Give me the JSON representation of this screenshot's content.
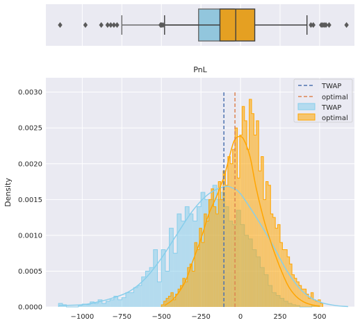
{
  "chart_data": [
    {
      "type": "boxplot",
      "orientation": "horizontal",
      "series": [
        {
          "name": "TWAP",
          "color": "#92c6dd",
          "q1": -265,
          "median": -100,
          "q3": -40,
          "whisker_low": -750,
          "whisker_high": 60,
          "outliers": [
            -1140,
            -980,
            -880,
            -840,
            -820,
            -800,
            -780
          ]
        },
        {
          "name": "optimal",
          "color": "#e5a022",
          "q1": -130,
          "median": -30,
          "q3": 90,
          "whisker_low": -480,
          "whisker_high": 420,
          "outliers": [
            -490,
            -500,
            -505,
            445,
            460,
            510,
            520,
            530,
            540,
            560,
            670
          ]
        }
      ],
      "xlim": [
        -1230,
        720
      ]
    },
    {
      "type": "histogram",
      "title": "PnL",
      "xlabel": "",
      "ylabel": "Density",
      "xlim": [
        -1230,
        720
      ],
      "ylim": [
        0,
        0.0032
      ],
      "x_ticks": [
        -1000,
        -750,
        -500,
        -250,
        0,
        250,
        500
      ],
      "x_tick_labels": [
        "−1000",
        "−750",
        "−500",
        "−250",
        "0",
        "250",
        "500"
      ],
      "y_ticks": [
        0,
        0.0005,
        0.001,
        0.0015,
        0.002,
        0.0025,
        0.003
      ],
      "y_tick_labels": [
        "0.0000",
        "0.0005",
        "0.0010",
        "0.0015",
        "0.0020",
        "0.0025",
        "0.0030"
      ],
      "grid": true,
      "legend_position": "top-right",
      "series": [
        {
          "name": "TWAP",
          "color": "#87ceeb",
          "bin_start": -1150,
          "bin_width": 25,
          "values": [
            5e-05,
            3e-05,
            0,
            0,
            0,
            2e-05,
            4e-05,
            3e-05,
            7e-05,
            5e-05,
            0.0001,
            5e-05,
            8e-05,
            0.0001,
            0.00015,
            0.0001,
            0.00013,
            0.0002,
            0.0002,
            0.00027,
            0.0003,
            0.00042,
            0.0005,
            0.00055,
            0.0008,
            0.00035,
            0.0008,
            0.0005,
            0.0011,
            0.00075,
            0.0013,
            0.0012,
            0.0014,
            0.0013,
            0.0012,
            0.0014,
            0.0016,
            0.0015,
            0.0015,
            0.0017,
            0.0015,
            0.0016,
            0.0014,
            0.0012,
            0.00115,
            0.00135,
            0.00115,
            0.001,
            0.00095,
            0.0008,
            0.0007,
            0.00055,
            0.00045,
            0.0003,
            0.0002,
            0.00016,
            0.00012,
            8e-05,
            5e-05,
            3e-05,
            2e-05,
            0,
            0,
            0,
            2e-05,
            2e-05
          ],
          "kde": [
            [
              -1150,
              2e-05
            ],
            [
              -1000,
              3e-05
            ],
            [
              -900,
              7e-05
            ],
            [
              -800,
              0.00013
            ],
            [
              -700,
              0.00022
            ],
            [
              -600,
              0.0004
            ],
            [
              -500,
              0.00068
            ],
            [
              -400,
              0.00102
            ],
            [
              -300,
              0.00135
            ],
            [
              -200,
              0.00158
            ],
            [
              -100,
              0.00168
            ],
            [
              -50,
              0.00166
            ],
            [
              0,
              0.00158
            ],
            [
              100,
              0.00125
            ],
            [
              200,
              0.00088
            ],
            [
              300,
              0.00048
            ],
            [
              400,
              0.0002
            ],
            [
              500,
              7e-05
            ],
            [
              600,
              2e-05
            ],
            [
              680,
              5e-06
            ]
          ]
        },
        {
          "name": "optimal",
          "color": "#ffa500",
          "bin_start": -500,
          "bin_width": 15,
          "values": [
            3e-05,
            8e-05,
            0.00012,
            0.00015,
            0.0002,
            0.0001,
            0.00018,
            0.00025,
            0.0003,
            0.0004,
            0.00035,
            0.00055,
            0.0006,
            0.0005,
            0.0009,
            0.0008,
            0.0011,
            0.0009,
            0.0013,
            0.0012,
            0.0015,
            0.00165,
            0.0014,
            0.0013,
            0.00175,
            0.0015,
            0.0019,
            0.0017,
            0.0021,
            0.002,
            0.0022,
            0.0025,
            0.0018,
            0.0024,
            0.0028,
            0.0026,
            0.0022,
            0.0029,
            0.0027,
            0.0024,
            0.0026,
            0.0019,
            0.0021,
            0.0015,
            0.00175,
            0.0017,
            0.0013,
            0.00125,
            0.0011,
            0.00115,
            0.0009,
            0.0008,
            0.0008,
            0.0007,
            0.0006,
            0.00045,
            0.0004,
            0.00035,
            0.0003,
            0.00025,
            0.00025,
            0.00018,
            0.00012,
            0.0002,
            0.0001,
            8e-05,
            0.0001,
            5e-05
          ],
          "kde": [
            [
              -480,
              2e-05
            ],
            [
              -420,
              0.00012
            ],
            [
              -350,
              0.00035
            ],
            [
              -300,
              0.00065
            ],
            [
              -250,
              0.00095
            ],
            [
              -200,
              0.0013
            ],
            [
              -150,
              0.00155
            ],
            [
              -100,
              0.00185
            ],
            [
              -70,
              0.0021
            ],
            [
              -40,
              0.00232
            ],
            [
              -10,
              0.00238
            ],
            [
              20,
              0.00234
            ],
            [
              60,
              0.0021
            ],
            [
              100,
              0.00165
            ],
            [
              150,
              0.0012
            ],
            [
              200,
              0.00085
            ],
            [
              250,
              0.00055
            ],
            [
              300,
              0.0003
            ],
            [
              350,
              0.00015
            ],
            [
              400,
              7e-05
            ],
            [
              450,
              3e-05
            ],
            [
              500,
              1e-05
            ]
          ]
        }
      ],
      "vlines": [
        {
          "name": "TWAP",
          "x": -105,
          "ymax": 0.003,
          "color": "#4c72b0"
        },
        {
          "name": "optimal",
          "x": -35,
          "ymax": 0.003,
          "color": "#dd8452"
        }
      ]
    }
  ],
  "legend": {
    "entries": [
      {
        "label": "TWAP",
        "kind": "dashed-line",
        "color": "#4c72b0"
      },
      {
        "label": "optimal",
        "kind": "dashed-line",
        "color": "#dd8452"
      },
      {
        "label": "TWAP",
        "kind": "patch",
        "color": "#87ceeb"
      },
      {
        "label": "optimal",
        "kind": "patch",
        "color": "#ffa500"
      }
    ]
  },
  "style": {
    "axes_background": "#eaeaf2",
    "grid_color": "#ffffff",
    "text_color": "#262626"
  }
}
